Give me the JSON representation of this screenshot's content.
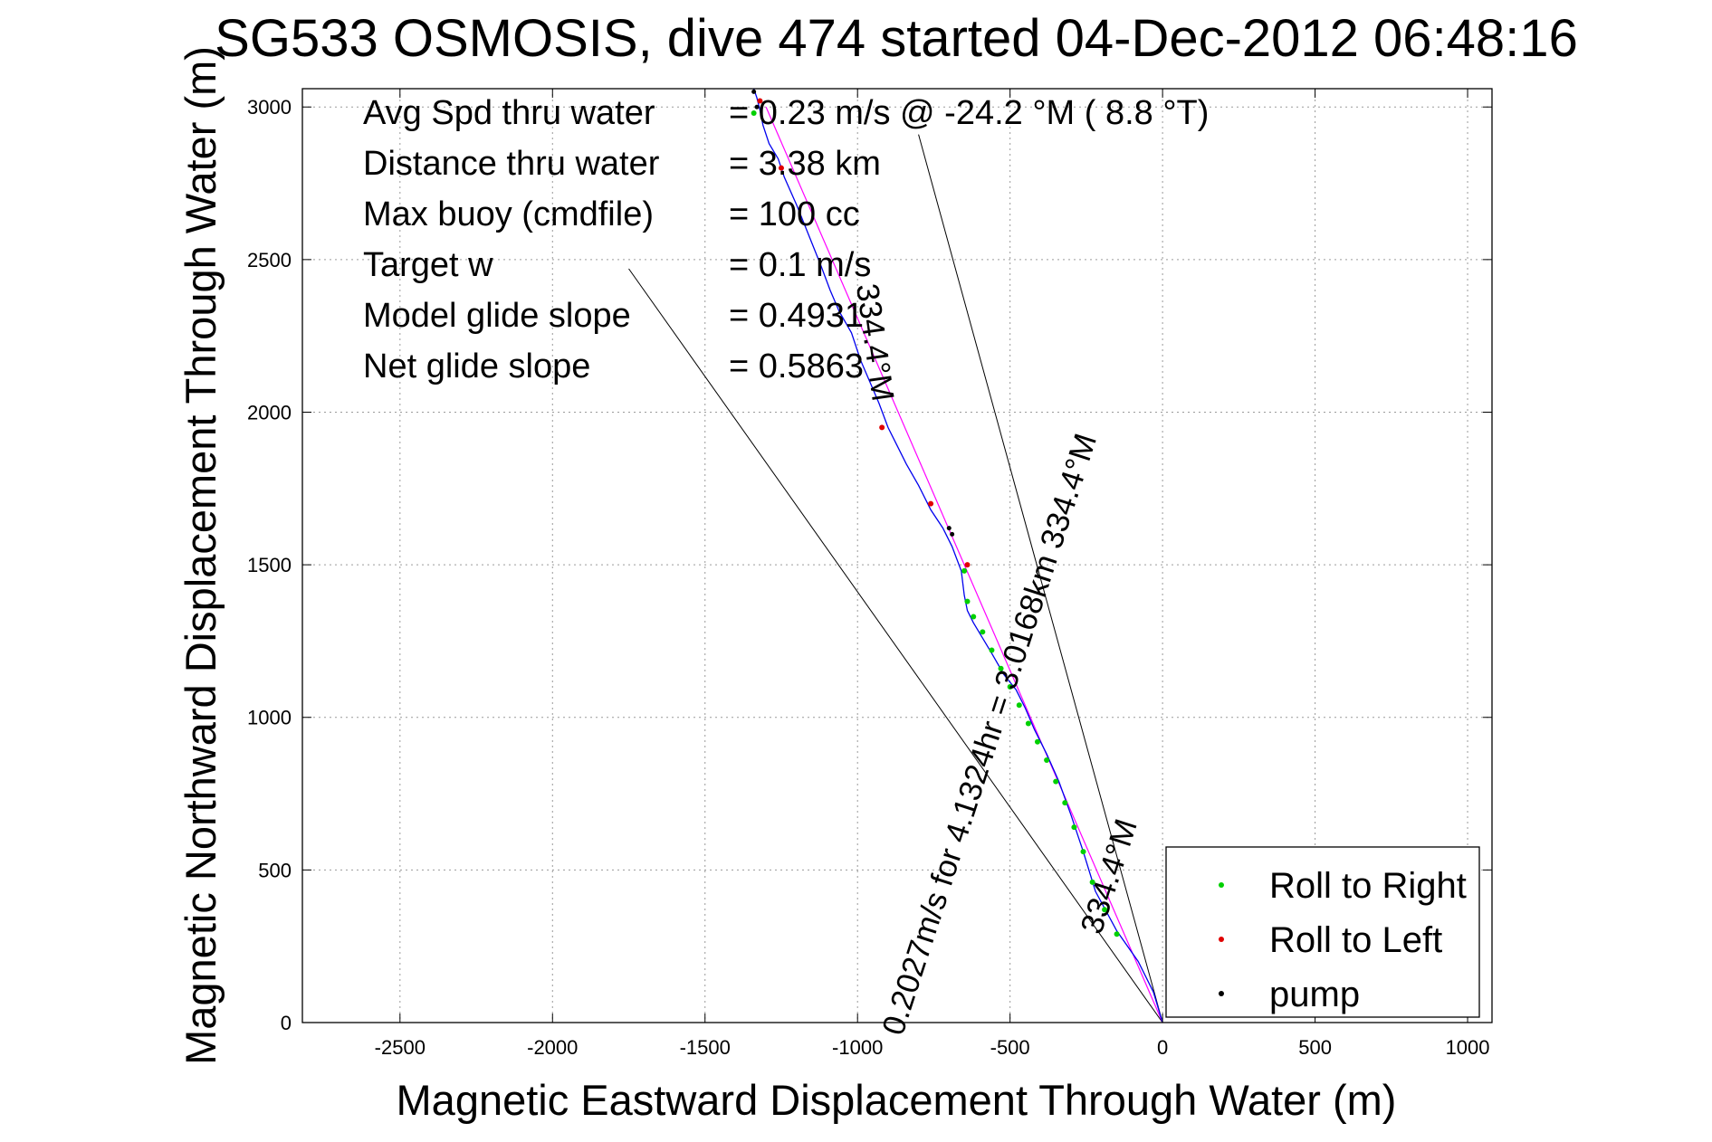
{
  "chart_data": {
    "type": "line",
    "title": "SG533 OSMOSIS, dive 474 started 04-Dec-2012 06:48:16",
    "xlabel": "Magnetic Eastward Displacement Through Water (m)",
    "ylabel": "Magnetic Northward Displacement Through Water (m)",
    "xlim": [
      -2820,
      1080
    ],
    "ylim": [
      0,
      3060
    ],
    "xticks": [
      -2500,
      -2000,
      -1500,
      -1000,
      -500,
      0,
      500,
      1000
    ],
    "yticks": [
      0,
      500,
      1000,
      1500,
      2000,
      2500,
      3000
    ],
    "grid": true,
    "legend_position": "bottom-right",
    "info": [
      {
        "label": "Avg Spd thru water",
        "value": "=  0.23 m/s @ -24.2 °M (  8.8 °T)"
      },
      {
        "label": "Distance thru water",
        "value": "=  3.38 km"
      },
      {
        "label": "Max buoy (cmdfile)",
        "value": "= 100 cc"
      },
      {
        "label": "Target w",
        "value": "= 0.1 m/s"
      },
      {
        "label": "Model glide slope",
        "value": "= 0.4931"
      },
      {
        "label": "Net glide slope",
        "value": "= 0.5863"
      }
    ],
    "annotations": [
      "0.2027m/s for 4.1324hr = 3.0168km 334.4°M",
      "334.4°M",
      "334.4°M"
    ],
    "series": [
      {
        "name": "Roll to Right",
        "color": "#00d000",
        "marker": "point"
      },
      {
        "name": "Roll to Left",
        "color": "#e00000",
        "marker": "point"
      },
      {
        "name": "pump",
        "color": "#000000",
        "marker": "point"
      }
    ],
    "track": {
      "color": "#0000ee",
      "x": [
        0,
        -30,
        -80,
        -150,
        -220,
        -260,
        -300,
        -340,
        -380,
        -420,
        -450,
        -480,
        -520,
        -560,
        -590,
        -620,
        -640,
        -650,
        -660,
        -690,
        -720,
        -760,
        -800,
        -840,
        -870,
        -900,
        -930,
        -960,
        -990,
        -1020,
        -1060,
        -1090,
        -1120,
        -1160,
        -1200,
        -1240,
        -1260,
        -1290,
        -1310,
        -1320,
        -1330,
        -1340
      ],
      "y": [
        0,
        100,
        200,
        300,
        430,
        560,
        680,
        790,
        880,
        960,
        1030,
        1090,
        1140,
        1210,
        1260,
        1310,
        1350,
        1400,
        1480,
        1560,
        1620,
        1680,
        1760,
        1830,
        1890,
        1950,
        2030,
        2100,
        2170,
        2260,
        2330,
        2400,
        2480,
        2580,
        2680,
        2770,
        2830,
        2880,
        2940,
        2990,
        3030,
        3060
      ]
    },
    "fit_line": {
      "color": "#ff00ff",
      "start": [
        0,
        0
      ],
      "end": [
        -1300,
        3000
      ]
    },
    "bound_lines": [
      {
        "color": "#000000",
        "start": [
          0,
          0
        ],
        "end": [
          -1750,
          2470
        ]
      },
      {
        "color": "#000000",
        "start": [
          0,
          0
        ],
        "end": [
          -800,
          2910
        ]
      }
    ],
    "right_roll_points": {
      "x": [
        -150,
        -190,
        -230,
        -260,
        -290,
        -320,
        -350,
        -380,
        -410,
        -440,
        -470,
        -500,
        -530,
        -560,
        -590,
        -620,
        -640,
        -650,
        -1340
      ],
      "y": [
        290,
        370,
        460,
        560,
        640,
        720,
        790,
        860,
        920,
        980,
        1040,
        1100,
        1160,
        1220,
        1280,
        1330,
        1380,
        1480,
        2980
      ]
    },
    "left_roll_points": {
      "x": [
        -1320,
        -1250,
        -920,
        -760,
        -640
      ],
      "y": [
        3020,
        2800,
        1950,
        1700,
        1500
      ]
    },
    "pump_points": {
      "x": [
        -1340,
        -1330,
        -700,
        -690
      ],
      "y": [
        3050,
        3000,
        1620,
        1600
      ]
    }
  }
}
